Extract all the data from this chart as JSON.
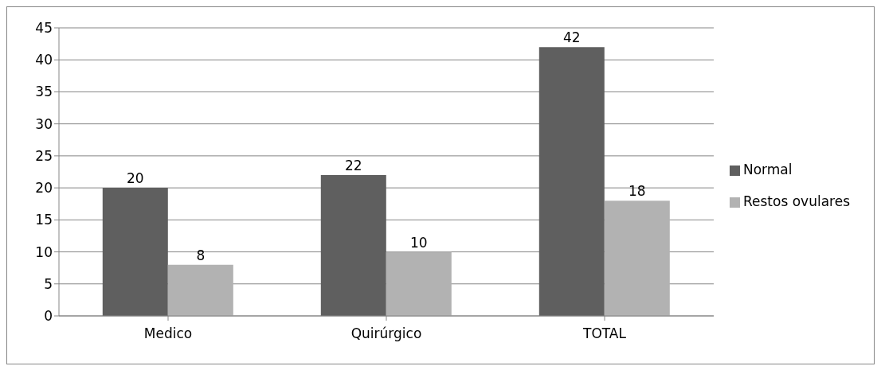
{
  "chart_data": {
    "type": "bar",
    "categories": [
      "Medico",
      "Quirúrgico",
      "TOTAL"
    ],
    "series": [
      {
        "name": "Normal",
        "color": "#5f5f5f",
        "values": [
          20,
          22,
          42
        ]
      },
      {
        "name": "Restos ovulares",
        "color": "#b2b2b2",
        "values": [
          8,
          10,
          18
        ]
      }
    ],
    "ylim": [
      0,
      45
    ],
    "yticks": [
      0,
      5,
      10,
      15,
      20,
      25,
      30,
      35,
      40,
      45
    ],
    "grid": "y",
    "legend": "right",
    "data_labels": true
  }
}
